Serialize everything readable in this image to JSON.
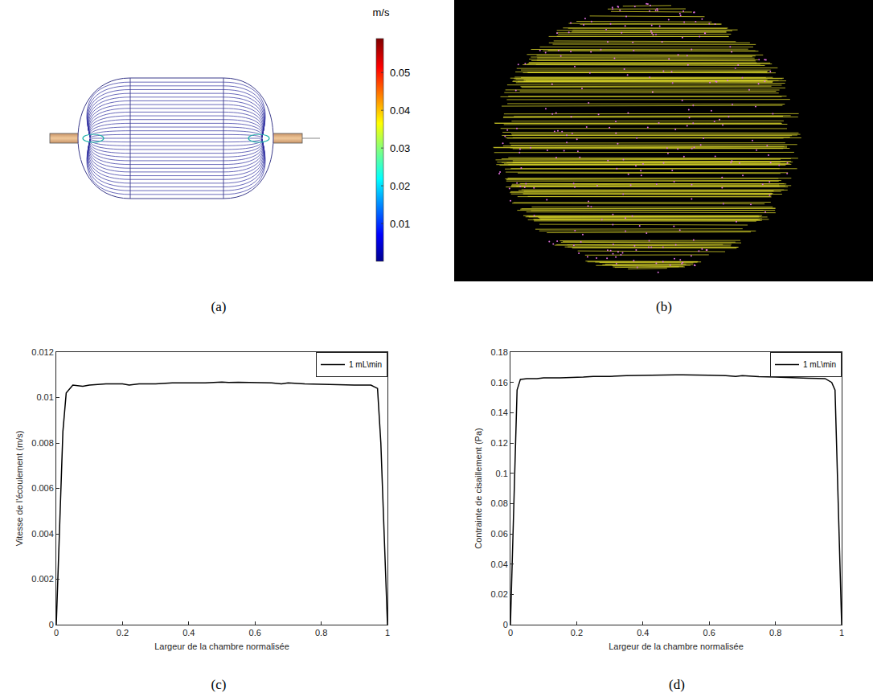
{
  "chart_data": [
    {
      "type": "streamlines",
      "title": "(a)",
      "colorbar": {
        "title": "m/s",
        "range": [
          0,
          0.059
        ],
        "ticks": [
          0.01,
          0.02,
          0.03,
          0.04,
          0.05
        ]
      }
    },
    {
      "type": "image",
      "title": "(b)"
    },
    {
      "type": "line",
      "title": "(c)",
      "xlabel": "Largeur de la chambre normalisée",
      "ylabel": "Vitesse de l'écoulement (m/s)",
      "x": [
        0,
        0.01,
        0.02,
        0.03,
        0.05,
        0.08,
        0.1,
        0.15,
        0.2,
        0.22,
        0.25,
        0.3,
        0.35,
        0.4,
        0.45,
        0.5,
        0.52,
        0.55,
        0.6,
        0.65,
        0.68,
        0.7,
        0.75,
        0.8,
        0.85,
        0.9,
        0.95,
        0.97,
        0.98,
        0.99,
        1
      ],
      "series": [
        {
          "name": "1 mL\\min",
          "color": "#000000",
          "values": [
            0,
            0.0045,
            0.0085,
            0.0102,
            0.01055,
            0.0105,
            0.01055,
            0.0106,
            0.0106,
            0.01055,
            0.0106,
            0.0106,
            0.01065,
            0.01065,
            0.01065,
            0.01068,
            0.01066,
            0.01067,
            0.01067,
            0.01065,
            0.0106,
            0.01065,
            0.0106,
            0.01058,
            0.01055,
            0.01055,
            0.01055,
            0.0104,
            0.008,
            0.004,
            0
          ]
        }
      ],
      "xlim": [
        0,
        1
      ],
      "ylim": [
        0,
        0.012
      ],
      "xticks": [
        0,
        0.2,
        0.4,
        0.6,
        0.8,
        1
      ],
      "yticks": [
        0,
        0.002,
        0.004,
        0.006,
        0.008,
        0.01,
        0.012
      ],
      "grid": false,
      "legend": "upper right"
    },
    {
      "type": "line",
      "title": "(d)",
      "xlabel": "Largeur de la chambre normalisée",
      "ylabel": "Contrainte de cisaillement (Pa)",
      "x": [
        0,
        0.01,
        0.02,
        0.03,
        0.05,
        0.08,
        0.1,
        0.15,
        0.2,
        0.22,
        0.25,
        0.3,
        0.35,
        0.4,
        0.45,
        0.5,
        0.52,
        0.55,
        0.6,
        0.65,
        0.68,
        0.7,
        0.75,
        0.8,
        0.85,
        0.9,
        0.95,
        0.97,
        0.98,
        0.99,
        1
      ],
      "series": [
        {
          "name": "1 mL\\min",
          "color": "#000000",
          "values": [
            0,
            0.08,
            0.155,
            0.162,
            0.1625,
            0.1625,
            0.163,
            0.163,
            0.1632,
            0.1635,
            0.164,
            0.164,
            0.1645,
            0.1648,
            0.165,
            0.165,
            0.165,
            0.165,
            0.1648,
            0.1645,
            0.164,
            0.1645,
            0.1638,
            0.1635,
            0.163,
            0.1628,
            0.1625,
            0.16,
            0.155,
            0.08,
            0
          ]
        }
      ],
      "xlim": [
        0,
        1
      ],
      "ylim": [
        0,
        0.18
      ],
      "xticks": [
        0,
        0.2,
        0.4,
        0.6,
        0.8,
        1
      ],
      "yticks": [
        0,
        0.02,
        0.04,
        0.06,
        0.08,
        0.1,
        0.12,
        0.14,
        0.16,
        0.18
      ],
      "grid": false,
      "legend": "upper right"
    }
  ]
}
